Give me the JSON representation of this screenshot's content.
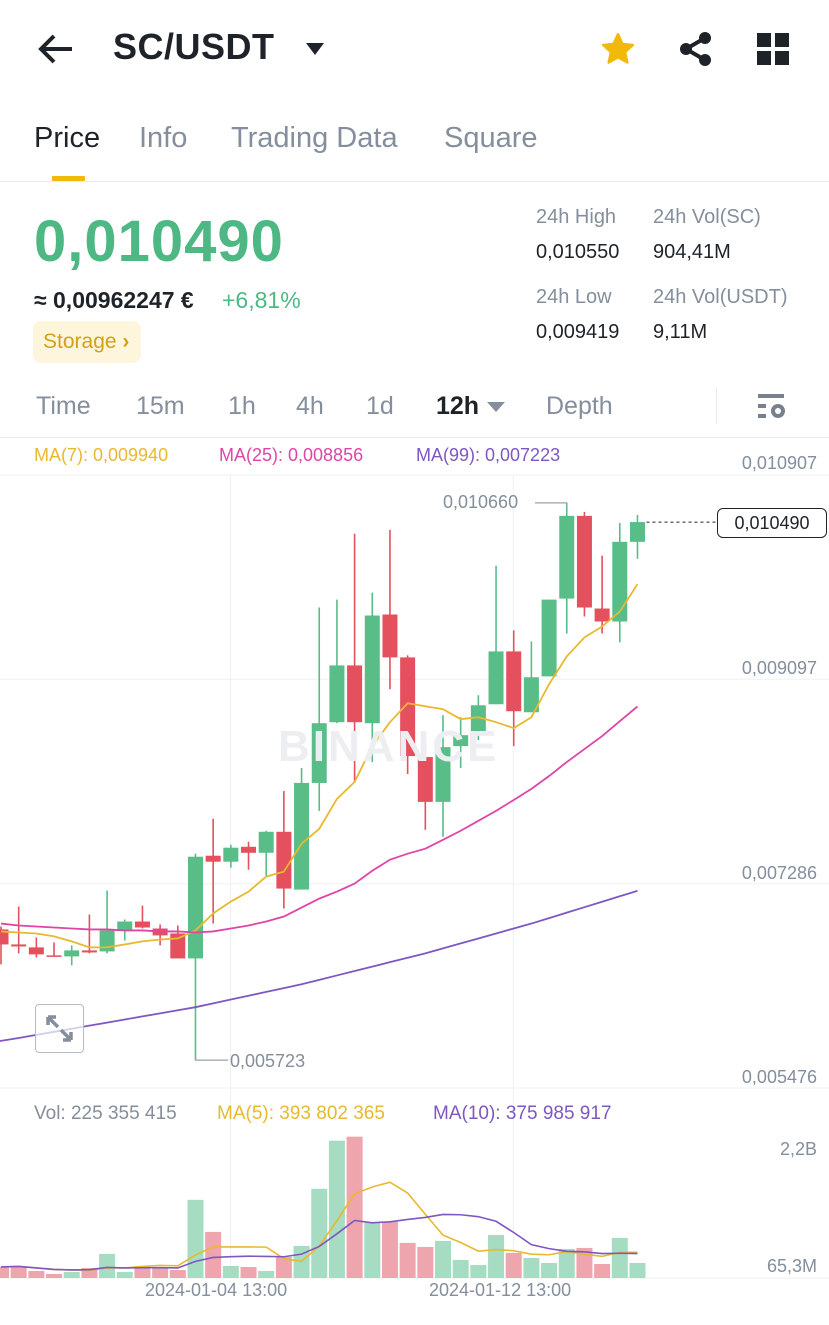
{
  "header": {
    "title": "SC/USDT",
    "icons": [
      "arrow-left-icon",
      "caret-down-icon",
      "star-icon",
      "share-icon",
      "grid-icon"
    ],
    "star_color": "#f0b90b"
  },
  "tabs": [
    {
      "label": "Price",
      "active": true
    },
    {
      "label": "Info"
    },
    {
      "label": "Trading Data"
    },
    {
      "label": "Square"
    }
  ],
  "ticker": {
    "last_price": "0,010490",
    "fiat_value": "≈ 0,00962247 €",
    "change_pct": "+6,81%",
    "tag": "Storage",
    "high_label": "24h High",
    "high_value": "0,010550",
    "low_label": "24h Low",
    "low_value": "0,009419",
    "vol_base_label": "24h Vol(SC)",
    "vol_base_value": "904,41M",
    "vol_quote_label": "24h Vol(USDT)",
    "vol_quote_value": "9,11M"
  },
  "intervals": [
    {
      "label": "Time"
    },
    {
      "label": "15m"
    },
    {
      "label": "1h"
    },
    {
      "label": "4h"
    },
    {
      "label": "1d"
    },
    {
      "label": "12h",
      "active": true
    },
    {
      "label": "Depth"
    }
  ],
  "ma_legend": {
    "ma7": "MA(7): 0,009940",
    "ma25": "MA(25): 0,008856",
    "ma99": "MA(99): 0,007223"
  },
  "colors": {
    "up": "#58bd87",
    "down": "#e4505d",
    "ma7": "#e8b92f",
    "ma25": "#df44a6",
    "ma99": "#7e57c2",
    "price_green": "#4db883",
    "accent": "#f0b90b"
  },
  "watermark": "BINANCE",
  "chart_data": {
    "type": "candlestick",
    "interval": "12h",
    "price_axis_labels": [
      "0,010907",
      "0,009097",
      "0,007286",
      "0,005476"
    ],
    "price_axis_values": [
      0.010907,
      0.009097,
      0.007286,
      0.005476
    ],
    "x_tick_labels": [
      "2024-01-04 13:00",
      "2024-01-12 13:00"
    ],
    "x_tick_index": [
      11,
      27
    ],
    "high_marker": {
      "label": "0,010660",
      "value": 0.01066,
      "index": 32
    },
    "low_marker": {
      "label": "0,005723",
      "value": 0.005723,
      "index": 11
    },
    "current_price_label": "0,010490",
    "candles": [
      [
        0.006881,
        0.006907,
        0.006571,
        0.006748
      ],
      [
        0.006748,
        0.007084,
        0.006669,
        0.00673
      ],
      [
        0.006722,
        0.00681,
        0.006633,
        0.00666
      ],
      [
        0.006651,
        0.006766,
        0.00664,
        0.006642
      ],
      [
        0.006642,
        0.006739,
        0.006563,
        0.006695
      ],
      [
        0.006695,
        0.007013,
        0.006669,
        0.006677
      ],
      [
        0.006686,
        0.007225,
        0.006669,
        0.006872
      ],
      [
        0.006872,
        0.006969,
        0.006783,
        0.006951
      ],
      [
        0.006951,
        0.007092,
        0.006889,
        0.006898
      ],
      [
        0.006889,
        0.006925,
        0.006739,
        0.006828
      ],
      [
        0.006845,
        0.006916,
        0.006624,
        0.006624
      ],
      [
        0.006624,
        0.007552,
        0.005723,
        0.007525
      ],
      [
        0.007534,
        0.007861,
        0.006933,
        0.007481
      ],
      [
        0.007481,
        0.007631,
        0.007428,
        0.007605
      ],
      [
        0.007613,
        0.007658,
        0.00741,
        0.00756
      ],
      [
        0.00756,
        0.007755,
        0.007357,
        0.007746
      ],
      [
        0.007746,
        0.008108,
        0.007066,
        0.007243
      ],
      [
        0.007234,
        0.008311,
        0.007234,
        0.008179
      ],
      [
        0.008179,
        0.009733,
        0.007931,
        0.008708
      ],
      [
        0.008717,
        0.009803,
        0.008708,
        0.00922
      ],
      [
        0.00922,
        0.010386,
        0.008187,
        0.008717
      ],
      [
        0.008708,
        0.009865,
        0.008364,
        0.009662
      ],
      [
        0.009671,
        0.010421,
        0.009009,
        0.009291
      ],
      [
        0.009291,
        0.009309,
        0.008258,
        0.008417
      ],
      [
        0.008408,
        0.008505,
        0.007764,
        0.008011
      ],
      [
        0.008011,
        0.008779,
        0.007702,
        0.008496
      ],
      [
        0.008505,
        0.008761,
        0.008311,
        0.008602
      ],
      [
        0.008611,
        0.008956,
        0.008558,
        0.008867
      ],
      [
        0.008876,
        0.010103,
        0.008876,
        0.009344
      ],
      [
        0.009344,
        0.00953,
        0.008505,
        0.008814
      ],
      [
        0.008805,
        0.009432,
        0.008805,
        0.009115
      ],
      [
        0.009123,
        0.009803,
        0.009123,
        0.009803
      ],
      [
        0.009812,
        0.01066,
        0.009503,
        0.010545
      ],
      [
        0.010545,
        0.01058,
        0.009653,
        0.009733
      ],
      [
        0.009724,
        0.010192,
        0.009503,
        0.009609
      ],
      [
        0.009609,
        0.010483,
        0.009424,
        0.010315
      ],
      [
        0.010315,
        0.010554,
        0.010165,
        0.01049
      ]
    ],
    "ma7": [
      0.006863,
      0.006854,
      0.006845,
      0.006819,
      0.006775,
      0.006722,
      0.006722,
      0.006748,
      0.006775,
      0.006792,
      0.006801,
      0.006872,
      0.007022,
      0.007128,
      0.007216,
      0.007349,
      0.007393,
      0.00764,
      0.007772,
      0.008037,
      0.008187,
      0.008505,
      0.008717,
      0.008885,
      0.008858,
      0.008832,
      0.008744,
      0.008761,
      0.008717,
      0.008664,
      0.008761,
      0.009053,
      0.0093,
      0.009468,
      0.009565,
      0.009697,
      0.00994
    ],
    "ma25": [
      0.006933,
      0.006916,
      0.006907,
      0.006898,
      0.006889,
      0.006881,
      0.006881,
      0.006872,
      0.006872,
      0.006863,
      0.006863,
      0.006854,
      0.006863,
      0.006889,
      0.006916,
      0.006951,
      0.006995,
      0.007075,
      0.007154,
      0.007216,
      0.007287,
      0.007401,
      0.007499,
      0.007552,
      0.007596,
      0.007675,
      0.007755,
      0.007843,
      0.007931,
      0.008028,
      0.008126,
      0.00824,
      0.008364,
      0.008479,
      0.008594,
      0.008726,
      0.008856
    ],
    "ma99_points": [
      [
        0,
        0.005892
      ],
      [
        11,
        0.006192
      ],
      [
        17,
        0.006395
      ],
      [
        24,
        0.006669
      ],
      [
        30,
        0.006933
      ],
      [
        36,
        0.007223
      ]
    ],
    "volume": {
      "legend_vol": "Vol: 225 355 415",
      "legend_ma5": "MA(5): 393 802 365",
      "legend_ma10": "MA(10): 375 985 917",
      "axis_labels": [
        "2,2B",
        "65,3M"
      ],
      "values": [
        165000000,
        180000000,
        105000000,
        60000000,
        90000000,
        150000000,
        360000000,
        90000000,
        180000000,
        165000000,
        120000000,
        1170000000,
        690000000,
        180000000,
        165000000,
        105000000,
        315000000,
        480000000,
        1335000000,
        2055000000,
        2115000000,
        825000000,
        840000000,
        525000000,
        465000000,
        555000000,
        270000000,
        195000000,
        645000000,
        375000000,
        300000000,
        225000000,
        435000000,
        450000000,
        210000000,
        600000000,
        225355415
      ]
    }
  }
}
